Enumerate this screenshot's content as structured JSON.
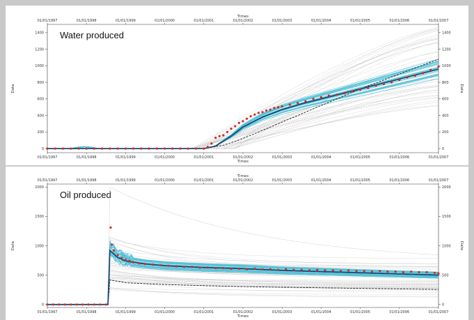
{
  "colors": {
    "history_points": "#d42a24",
    "ensemble_light": "#4fbfd6",
    "ensemble_mean": "#1a4a72",
    "prior_mean": "#222222",
    "prior_lines": "#b5b5b5",
    "axis": "#333333"
  },
  "chart_data": [
    {
      "type": "line",
      "title": "Water produced",
      "xlabel": "Times",
      "ylabel": "Data",
      "x_tick_labels": [
        "01/01/1997",
        "01/01/1998",
        "01/01/1999",
        "01/01/2000",
        "01/01/2001",
        "01/01/2002",
        "01/01/2003",
        "01/01/2004",
        "01/01/2005",
        "01/01/2006",
        "01/01/2007"
      ],
      "xlim": [
        1997,
        2007
      ],
      "ylim": [
        -50,
        1500
      ],
      "y_ticks": [
        0,
        200,
        400,
        600,
        800,
        1000,
        1200,
        1400
      ],
      "grid": false,
      "legend": "none",
      "series": [
        {
          "role": "observed_history",
          "style": "red dots",
          "points": [
            [
              1997.0,
              0
            ],
            [
              1997.2,
              0
            ],
            [
              1997.4,
              0
            ],
            [
              1997.6,
              0
            ],
            [
              1997.8,
              0
            ],
            [
              1998.0,
              0
            ],
            [
              1998.2,
              0
            ],
            [
              1998.4,
              0
            ],
            [
              1998.6,
              0
            ],
            [
              1998.8,
              0
            ],
            [
              1999.0,
              0
            ],
            [
              1999.2,
              0
            ],
            [
              1999.4,
              0
            ],
            [
              1999.6,
              0
            ],
            [
              1999.8,
              0
            ],
            [
              2000.0,
              0
            ],
            [
              2000.2,
              0
            ],
            [
              2000.4,
              0
            ],
            [
              2000.6,
              0
            ],
            [
              2000.8,
              0
            ],
            [
              2001.0,
              0
            ],
            [
              2001.1,
              20
            ],
            [
              2001.2,
              60
            ],
            [
              2001.3,
              130
            ],
            [
              2001.4,
              150
            ],
            [
              2001.5,
              160
            ],
            [
              2001.6,
              200
            ],
            [
              2001.7,
              240
            ],
            [
              2001.8,
              270
            ],
            [
              2001.9,
              310
            ],
            [
              2002.0,
              330
            ],
            [
              2002.1,
              360
            ],
            [
              2002.2,
              390
            ],
            [
              2002.3,
              410
            ],
            [
              2002.4,
              430
            ],
            [
              2002.5,
              440
            ],
            [
              2002.6,
              460
            ],
            [
              2002.7,
              470
            ],
            [
              2002.8,
              490
            ],
            [
              2002.9,
              500
            ],
            [
              2003.0,
              510
            ],
            [
              2003.2,
              530
            ],
            [
              2003.4,
              550
            ],
            [
              2003.6,
              570
            ],
            [
              2003.8,
              600
            ],
            [
              2004.0,
              620
            ],
            [
              2004.2,
              640
            ],
            [
              2004.4,
              650
            ],
            [
              2004.6,
              670
            ],
            [
              2004.8,
              690
            ],
            [
              2005.0,
              710
            ],
            [
              2005.2,
              730
            ],
            [
              2005.4,
              760
            ],
            [
              2005.6,
              780
            ],
            [
              2005.8,
              800
            ],
            [
              2006.0,
              830
            ],
            [
              2006.2,
              860
            ],
            [
              2006.4,
              880
            ],
            [
              2006.6,
              910
            ],
            [
              2006.8,
              950
            ],
            [
              2007.0,
              990
            ]
          ]
        },
        {
          "role": "posterior_mean",
          "style": "dark blue line",
          "points": [
            [
              1997,
              0
            ],
            [
              2001,
              0
            ],
            [
              2001.3,
              30
            ],
            [
              2001.7,
              150
            ],
            [
              2002,
              260
            ],
            [
              2002.5,
              380
            ],
            [
              2003,
              470
            ],
            [
              2003.5,
              540
            ],
            [
              2004,
              600
            ],
            [
              2004.5,
              660
            ],
            [
              2005,
              720
            ],
            [
              2005.5,
              780
            ],
            [
              2006,
              840
            ],
            [
              2006.5,
              900
            ],
            [
              2007,
              960
            ]
          ]
        },
        {
          "role": "prior_mean",
          "style": "black dashed line",
          "points": [
            [
              1997,
              0
            ],
            [
              2001,
              0
            ],
            [
              2001.5,
              40
            ],
            [
              2002,
              120
            ],
            [
              2002.5,
              220
            ],
            [
              2003,
              320
            ],
            [
              2003.5,
              420
            ],
            [
              2004,
              520
            ],
            [
              2004.5,
              620
            ],
            [
              2005,
              720
            ],
            [
              2005.5,
              810
            ],
            [
              2006,
              900
            ],
            [
              2006.5,
              990
            ],
            [
              2007,
              1080
            ]
          ]
        }
      ]
    },
    {
      "type": "line",
      "title": "Oil produced",
      "xlabel": "Times",
      "ylabel": "Data",
      "x_tick_labels": [
        "01/01/1997",
        "01/01/1998",
        "01/01/1999",
        "01/01/2000",
        "01/01/2001",
        "01/01/2002",
        "01/01/2003",
        "01/01/2004",
        "01/01/2005",
        "01/01/2006",
        "01/01/2007"
      ],
      "xlim": [
        1997,
        2007
      ],
      "ylim": [
        -50,
        2050
      ],
      "y_ticks": [
        0,
        500,
        1000,
        1500,
        2000
      ],
      "grid": false,
      "legend": "none",
      "series": [
        {
          "role": "observed_history",
          "style": "red dots",
          "points": [
            [
              1997.0,
              0
            ],
            [
              1997.15,
              0
            ],
            [
              1997.3,
              0
            ],
            [
              1997.45,
              0
            ],
            [
              1997.6,
              0
            ],
            [
              1997.75,
              0
            ],
            [
              1997.9,
              0
            ],
            [
              1998.05,
              0
            ],
            [
              1998.2,
              0
            ],
            [
              1998.35,
              0
            ],
            [
              1998.5,
              0
            ],
            [
              1998.62,
              1310
            ],
            [
              1998.65,
              1020
            ],
            [
              1998.7,
              920
            ],
            [
              1998.8,
              840
            ],
            [
              1998.9,
              790
            ],
            [
              1999.0,
              760
            ],
            [
              1999.1,
              740
            ],
            [
              1999.2,
              720
            ],
            [
              1999.35,
              700
            ],
            [
              1999.5,
              690
            ],
            [
              1999.7,
              680
            ],
            [
              1999.9,
              670
            ],
            [
              2000.1,
              660
            ],
            [
              2000.3,
              650
            ],
            [
              2000.5,
              640
            ],
            [
              2000.7,
              640
            ],
            [
              2000.9,
              630
            ],
            [
              2001.1,
              630
            ],
            [
              2001.3,
              620
            ],
            [
              2001.5,
              620
            ],
            [
              2001.7,
              610
            ],
            [
              2001.9,
              610
            ],
            [
              2002.1,
              600
            ],
            [
              2002.3,
              610
            ],
            [
              2002.5,
              600
            ],
            [
              2002.7,
              600
            ],
            [
              2002.9,
              590
            ],
            [
              2003.1,
              600
            ],
            [
              2003.3,
              590
            ],
            [
              2003.5,
              590
            ],
            [
              2003.7,
              580
            ],
            [
              2003.9,
              590
            ],
            [
              2004.1,
              580
            ],
            [
              2004.3,
              580
            ],
            [
              2004.5,
              570
            ],
            [
              2004.7,
              580
            ],
            [
              2004.9,
              570
            ],
            [
              2005.1,
              570
            ],
            [
              2005.3,
              560
            ],
            [
              2005.5,
              570
            ],
            [
              2005.7,
              560
            ],
            [
              2005.9,
              560
            ],
            [
              2006.1,
              550
            ],
            [
              2006.3,
              560
            ],
            [
              2006.5,
              550
            ],
            [
              2006.7,
              550
            ],
            [
              2006.9,
              540
            ],
            [
              2007.0,
              530
            ]
          ]
        },
        {
          "role": "posterior_mean",
          "style": "dark blue line",
          "points": [
            [
              1997,
              0
            ],
            [
              1998.55,
              0
            ],
            [
              1998.6,
              920
            ],
            [
              1998.8,
              800
            ],
            [
              1999,
              740
            ],
            [
              1999.5,
              690
            ],
            [
              2000,
              660
            ],
            [
              2001,
              630
            ],
            [
              2002,
              610
            ],
            [
              2003,
              580
            ],
            [
              2004,
              560
            ],
            [
              2005,
              540
            ],
            [
              2006,
              520
            ],
            [
              2007,
              500
            ]
          ]
        },
        {
          "role": "prior_mean",
          "style": "black dashed line",
          "points": [
            [
              1997,
              0
            ],
            [
              1998.55,
              0
            ],
            [
              1998.6,
              420
            ],
            [
              1999,
              370
            ],
            [
              2000,
              340
            ],
            [
              2001,
              320
            ],
            [
              2002,
              305
            ],
            [
              2003,
              295
            ],
            [
              2004,
              285
            ],
            [
              2005,
              275
            ],
            [
              2006,
              265
            ],
            [
              2007,
              255
            ]
          ]
        }
      ]
    }
  ]
}
